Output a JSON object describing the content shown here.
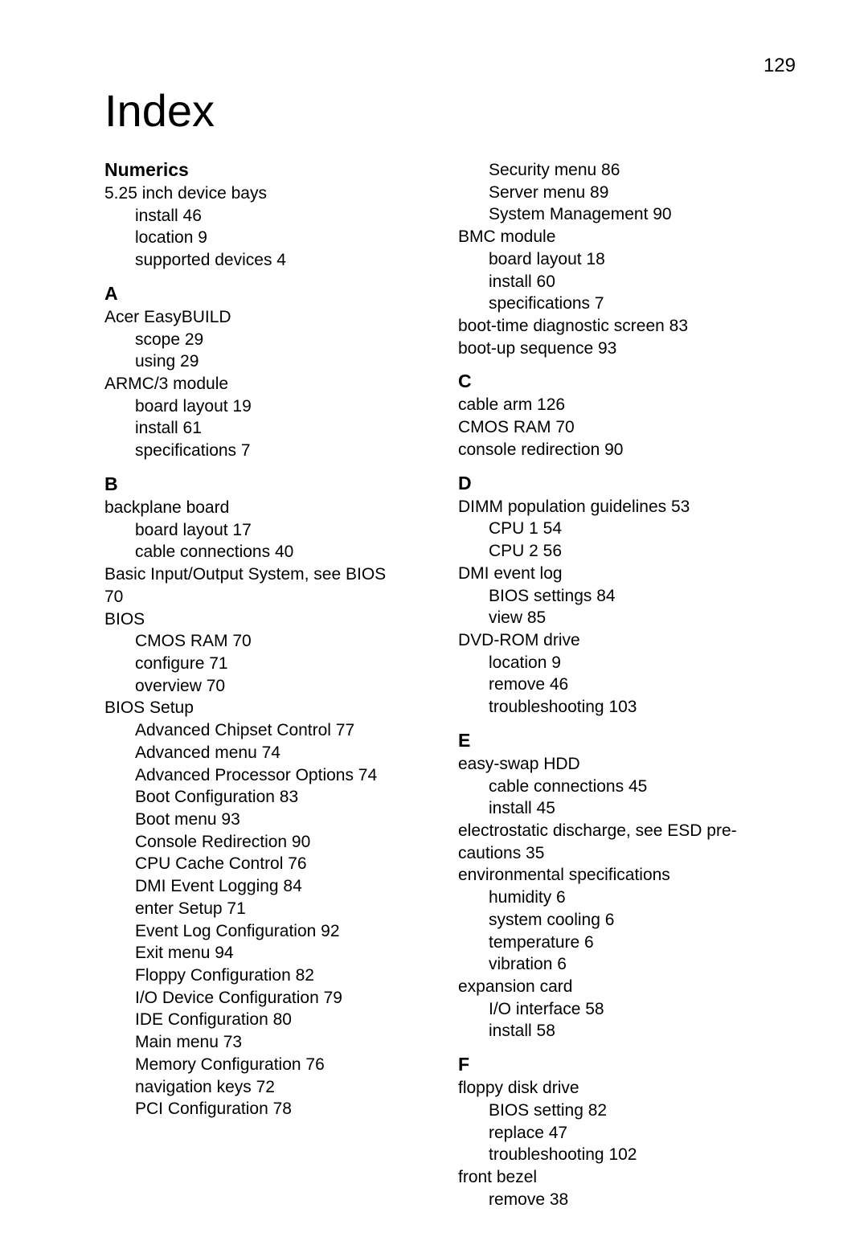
{
  "page_number": "129",
  "title": "Index",
  "left_column": [
    {
      "type": "header",
      "text": "Numerics"
    },
    {
      "type": "main",
      "text": "5.25 inch device bays"
    },
    {
      "type": "sub",
      "text": "install     46"
    },
    {
      "type": "sub",
      "text": "location     9"
    },
    {
      "type": "sub",
      "text": "supported devices     4"
    },
    {
      "type": "header",
      "text": "A"
    },
    {
      "type": "main",
      "text": "Acer EasyBUILD"
    },
    {
      "type": "sub",
      "text": "scope     29"
    },
    {
      "type": "sub",
      "text": "using     29"
    },
    {
      "type": "main",
      "text": "ARMC/3 module"
    },
    {
      "type": "sub",
      "text": "board layout     19"
    },
    {
      "type": "sub",
      "text": "install     61"
    },
    {
      "type": "sub",
      "text": "specifications     7"
    },
    {
      "type": "header",
      "text": "B"
    },
    {
      "type": "main",
      "text": "backplane board"
    },
    {
      "type": "sub",
      "text": "board layout     17"
    },
    {
      "type": "sub",
      "text": "cable connections     40"
    },
    {
      "type": "main",
      "text": "Basic  Input/Output  System,  see  BIOS"
    },
    {
      "type": "main",
      "text": "70"
    },
    {
      "type": "main",
      "text": "BIOS"
    },
    {
      "type": "sub",
      "text": "CMOS RAM     70"
    },
    {
      "type": "sub",
      "text": "configure     71"
    },
    {
      "type": "sub",
      "text": "overview     70"
    },
    {
      "type": "main",
      "text": "BIOS Setup"
    },
    {
      "type": "sub",
      "text": "Advanced Chipset Control     77"
    },
    {
      "type": "sub",
      "text": "Advanced menu     74"
    },
    {
      "type": "sub",
      "text": "Advanced Processor Options     74"
    },
    {
      "type": "sub",
      "text": "Boot Configuration     83"
    },
    {
      "type": "sub",
      "text": "Boot menu     93"
    },
    {
      "type": "sub",
      "text": "Console Redirection     90"
    },
    {
      "type": "sub",
      "text": "CPU Cache Control     76"
    },
    {
      "type": "sub",
      "text": "DMI Event Logging     84"
    },
    {
      "type": "sub",
      "text": "enter Setup     71"
    },
    {
      "type": "sub",
      "text": "Event Log Configuration     92"
    },
    {
      "type": "sub",
      "text": "Exit menu     94"
    },
    {
      "type": "sub",
      "text": "Floppy Configuration     82"
    },
    {
      "type": "sub",
      "text": "I/O Device Configuration     79"
    },
    {
      "type": "sub",
      "text": "IDE Configuration     80"
    },
    {
      "type": "sub",
      "text": "Main menu     73"
    },
    {
      "type": "sub",
      "text": "Memory Configuration     76"
    },
    {
      "type": "sub",
      "text": "navigation keys     72"
    },
    {
      "type": "sub",
      "text": "PCI Configuration     78"
    }
  ],
  "right_column": [
    {
      "type": "sub",
      "text": "Security menu     86"
    },
    {
      "type": "sub",
      "text": "Server menu     89"
    },
    {
      "type": "sub",
      "text": "System Management     90"
    },
    {
      "type": "main",
      "text": "BMC module"
    },
    {
      "type": "sub",
      "text": "board layout     18"
    },
    {
      "type": "sub",
      "text": "install     60"
    },
    {
      "type": "sub",
      "text": "specifications     7"
    },
    {
      "type": "main",
      "text": "boot-time diagnostic screen     83"
    },
    {
      "type": "main",
      "text": "boot-up sequence     93"
    },
    {
      "type": "header",
      "text": "C"
    },
    {
      "type": "main",
      "text": "cable arm     126"
    },
    {
      "type": "main",
      "text": "CMOS RAM     70"
    },
    {
      "type": "main",
      "text": "console redirection     90"
    },
    {
      "type": "header",
      "text": "D"
    },
    {
      "type": "main",
      "text": "DIMM population guidelines     53"
    },
    {
      "type": "sub",
      "text": "CPU 1     54"
    },
    {
      "type": "sub",
      "text": "CPU 2     56"
    },
    {
      "type": "main",
      "text": "DMI event log"
    },
    {
      "type": "sub",
      "text": "BIOS settings     84"
    },
    {
      "type": "sub",
      "text": "view     85"
    },
    {
      "type": "main",
      "text": "DVD-ROM drive"
    },
    {
      "type": "sub",
      "text": "location     9"
    },
    {
      "type": "sub",
      "text": "remove     46"
    },
    {
      "type": "sub",
      "text": "troubleshooting     103"
    },
    {
      "type": "header",
      "text": "E"
    },
    {
      "type": "main",
      "text": "easy-swap HDD"
    },
    {
      "type": "sub",
      "text": "cable connections     45"
    },
    {
      "type": "sub",
      "text": "install     45"
    },
    {
      "type": "main",
      "text": "electrostatic  discharge,  see  ESD  pre-"
    },
    {
      "type": "main",
      "text": "cautions     35"
    },
    {
      "type": "main",
      "text": "environmental specifications"
    },
    {
      "type": "sub",
      "text": "humidity     6"
    },
    {
      "type": "sub",
      "text": "system cooling     6"
    },
    {
      "type": "sub",
      "text": "temperature     6"
    },
    {
      "type": "sub",
      "text": "vibration     6"
    },
    {
      "type": "main",
      "text": "expansion card"
    },
    {
      "type": "sub",
      "text": "I/O interface     58"
    },
    {
      "type": "sub",
      "text": "install     58"
    },
    {
      "type": "header",
      "text": "F"
    },
    {
      "type": "main",
      "text": "floppy disk drive"
    },
    {
      "type": "sub",
      "text": "BIOS setting     82"
    },
    {
      "type": "sub",
      "text": "replace     47"
    },
    {
      "type": "sub",
      "text": "troubleshooting     102"
    },
    {
      "type": "main",
      "text": "front bezel"
    },
    {
      "type": "sub",
      "text": "remove     38"
    }
  ]
}
